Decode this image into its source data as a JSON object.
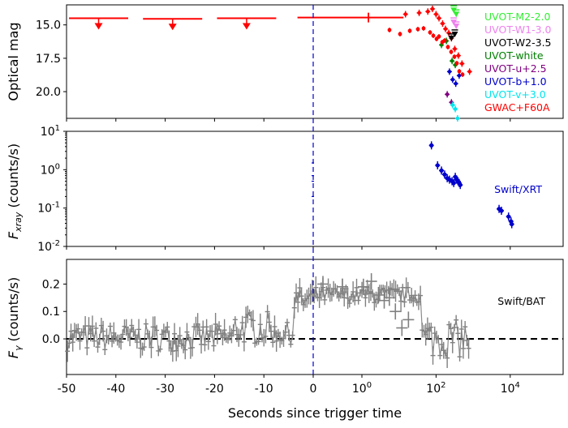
{
  "chart_data": {
    "type": "scatter",
    "xlabel": "Seconds since trigger time",
    "x_scale": "linear in [-50, 0]; log-like beyond 0 (0, 10^0, 10^2, 10^4)",
    "x_ticks": [
      "-50",
      "-40",
      "-30",
      "-20",
      "-10",
      "0",
      "10^0",
      "10^2",
      "10^4"
    ],
    "trigger_line": {
      "x": 0,
      "color": "#0000cc",
      "style": "dashed"
    },
    "panels": [
      {
        "id": "optical",
        "ylabel": "Optical mag",
        "y_inverted": true,
        "ylim": [
          22.0,
          13.5
        ],
        "yticks": [
          "15.0",
          "17.5",
          "20.0"
        ],
        "series": [
          {
            "name": "GWAC+F60A",
            "color": "#ff0000",
            "kind": "upper_limits",
            "points": [
              {
                "x": -43.5,
                "x_err": 6.0,
                "y": 14.5
              },
              {
                "x": -28.5,
                "x_err": 6.0,
                "y": 14.55
              },
              {
                "x": -13.5,
                "x_err": 6.0,
                "y": 14.5
              },
              {
                "x": 1.5,
                "x_err": "-0.8 to 60 s",
                "y": 14.45
              }
            ]
          },
          {
            "name": "GWAC+F60A",
            "color": "#ff0000",
            "kind": "detections",
            "points": [
              {
                "x": 15,
                "y": 14.2
              },
              {
                "x": 35,
                "y": 14.1
              },
              {
                "x": 60,
                "y": 14.0
              },
              {
                "x": 80,
                "y": 13.8
              },
              {
                "x": 100,
                "y": 14.2
              },
              {
                "x": 120,
                "y": 14.5
              },
              {
                "x": 150,
                "y": 14.9
              },
              {
                "x": 180,
                "y": 15.3
              },
              {
                "x": 220,
                "y": 15.6
              },
              {
                "x": 260,
                "y": 16.0
              },
              {
                "x": 320,
                "y": 16.8
              },
              {
                "x": 400,
                "y": 17.3
              },
              {
                "x": 500,
                "y": 17.9
              },
              {
                "x": 800,
                "y": 18.5
              }
            ]
          },
          {
            "name": "UVOT-M2-2.0",
            "color": "#33ee33",
            "kind": "upper_limits",
            "points": [
              {
                "x": 300,
                "y": 13.7
              },
              {
                "x": 350,
                "y": 14.0
              }
            ]
          },
          {
            "name": "UVOT-W1-3.0",
            "color": "#ee82ee",
            "kind": "upper_limits",
            "points": [
              {
                "x": 300,
                "y": 14.6
              },
              {
                "x": 350,
                "y": 14.9
              }
            ]
          },
          {
            "name": "UVOT-W2-3.5",
            "color": "#000000",
            "kind": "upper_limits",
            "points": [
              {
                "x": 260,
                "y": 15.8
              },
              {
                "x": 320,
                "y": 15.5
              }
            ]
          },
          {
            "name": "UVOT-white",
            "color": "#008000",
            "points": [
              {
                "x": 140,
                "y": 16.5
              },
              {
                "x": 190,
                "y": 16.2
              },
              {
                "x": 270,
                "y": 17.7
              },
              {
                "x": 330,
                "y": 18.0
              }
            ]
          },
          {
            "name": "UVOT-u+2.5",
            "color": "#800080",
            "points": [
              {
                "x": 200,
                "y": 20.2
              },
              {
                "x": 260,
                "y": 20.8
              }
            ]
          },
          {
            "name": "UVOT-b+1.0",
            "color": "#0000cc",
            "points": [
              {
                "x": 230,
                "y": 18.5
              },
              {
                "x": 280,
                "y": 19.1
              },
              {
                "x": 340,
                "y": 19.4
              },
              {
                "x": 420,
                "y": 18.8
              }
            ]
          },
          {
            "name": "UVOT-v+3.0",
            "color": "#00e5ee",
            "points": [
              {
                "x": 280,
                "y": 21.0
              },
              {
                "x": 330,
                "y": 21.3
              },
              {
                "x": 380,
                "y": 22.0
              }
            ]
          }
        ]
      },
      {
        "id": "xray",
        "ylabel": "F_xray (counts/s)",
        "y_scale": "log",
        "ylim": [
          0.01,
          10
        ],
        "yticks": [
          "10^-2",
          "10^-1",
          "10^0",
          "10^1"
        ],
        "annotation": "Swift/XRT",
        "series": [
          {
            "name": "Swift/XRT",
            "color": "#0000cc",
            "points": [
              {
                "x": 75,
                "y": 4.3
              },
              {
                "x": 110,
                "y": 1.3
              },
              {
                "x": 140,
                "y": 0.95
              },
              {
                "x": 170,
                "y": 0.75
              },
              {
                "x": 200,
                "y": 0.6
              },
              {
                "x": 230,
                "y": 0.55
              },
              {
                "x": 270,
                "y": 0.5
              },
              {
                "x": 300,
                "y": 0.45
              },
              {
                "x": 330,
                "y": 0.65
              },
              {
                "x": 360,
                "y": 0.55
              },
              {
                "x": 390,
                "y": 0.5
              },
              {
                "x": 420,
                "y": 0.45
              },
              {
                "x": 450,
                "y": 0.4
              },
              {
                "x": 5000,
                "y": 0.095
              },
              {
                "x": 5800,
                "y": 0.085
              },
              {
                "x": 9000,
                "y": 0.06
              },
              {
                "x": 10500,
                "y": 0.045
              },
              {
                "x": 11000,
                "y": 0.038
              }
            ]
          }
        ]
      },
      {
        "id": "gamma",
        "ylabel": "F_γ (counts/s)",
        "ylim": [
          -0.13,
          0.29
        ],
        "yticks": [
          "0.0",
          "0.1",
          "0.2"
        ],
        "annotation": "Swift/BAT",
        "color": "#808080",
        "zero_line": {
          "y": 0.0,
          "color": "#000000",
          "style": "dashed"
        },
        "series": [
          {
            "name": "Swift/BAT",
            "color": "#808080",
            "kind": "binned_lightcurve",
            "segments": [
              {
                "x_from": -50,
                "x_to": -16,
                "mean": 0.005,
                "scatter": 0.05
              },
              {
                "x_from": -16,
                "x_to": -8,
                "mean": 0.04,
                "scatter": 0.06
              },
              {
                "x_from": -8,
                "x_to": -4,
                "mean": 0.02,
                "scatter": 0.04
              },
              {
                "x_from": -4,
                "x_to": 0,
                "mean": 0.14,
                "scatter": 0.05
              },
              {
                "x_from": 0,
                "x_to": 40,
                "mean": 0.16,
                "scatter": 0.03
              },
              {
                "x_from": 40,
                "x_to": 800,
                "mean": 0.0,
                "scatter": 0.07
              }
            ],
            "points": [
              {
                "x": 0.2,
                "y": 0.2
              },
              {
                "x": 0.6,
                "y": 0.19
              },
              {
                "x": 1.1,
                "y": 0.19
              },
              {
                "x": 1.8,
                "y": 0.21
              },
              {
                "x": 2.8,
                "y": 0.16
              },
              {
                "x": 4,
                "y": 0.14
              },
              {
                "x": 5.5,
                "y": 0.15
              },
              {
                "x": 8,
                "y": 0.1
              },
              {
                "x": 12,
                "y": 0.04
              },
              {
                "x": 18,
                "y": 0.07
              }
            ]
          }
        ]
      }
    ],
    "legend": {
      "placement": "top-right of optical panel",
      "entries": [
        "UVOT-M2-2.0",
        "UVOT-W1-3.0",
        "UVOT-W2-3.5",
        "UVOT-white",
        "UVOT-u+2.5",
        "UVOT-b+1.0",
        "UVOT-v+3.0",
        "GWAC+F60A"
      ]
    }
  }
}
